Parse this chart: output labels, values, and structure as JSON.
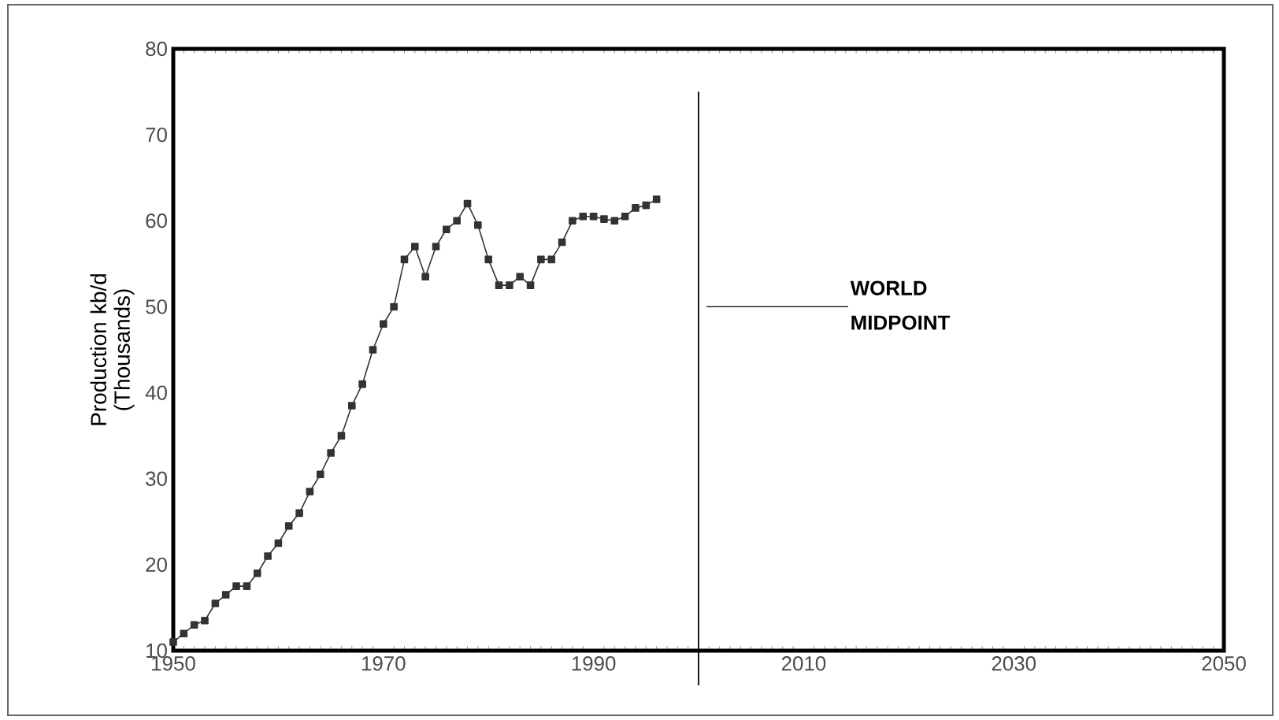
{
  "chart_data": {
    "type": "line",
    "ylabel": "Production kb/d (Thousands)",
    "x": [
      1950,
      1951,
      1952,
      1953,
      1954,
      1955,
      1956,
      1957,
      1958,
      1959,
      1960,
      1961,
      1962,
      1963,
      1964,
      1965,
      1966,
      1967,
      1968,
      1969,
      1970,
      1971,
      1972,
      1973,
      1974,
      1975,
      1976,
      1977,
      1978,
      1979,
      1980,
      1981,
      1982,
      1983,
      1984,
      1985,
      1986,
      1987,
      1988,
      1989,
      1990,
      1991,
      1992,
      1993,
      1994,
      1995,
      1996
    ],
    "values": [
      11,
      12,
      13,
      13.5,
      15.5,
      16.5,
      17.5,
      17.5,
      19,
      21,
      22.5,
      24.5,
      26,
      28.5,
      30.5,
      33,
      35,
      38.5,
      41,
      45,
      48,
      50,
      55.5,
      57,
      53.5,
      57,
      59,
      60,
      62,
      59.5,
      55.5,
      52.5,
      52.5,
      53.5,
      52.5,
      55.5,
      55.5,
      57.5,
      60,
      60.5,
      60.5,
      60.2,
      60,
      60.5,
      61.5,
      61.8,
      62.5
    ],
    "color": "#333333",
    "marker": "square",
    "line_style": "solid",
    "grid": false,
    "xlim": [
      1950,
      2050
    ],
    "xticks": [
      1950,
      1970,
      1990,
      2010,
      2030,
      2050
    ],
    "ylim": [
      10,
      80
    ],
    "yticks": [
      10,
      20,
      30,
      40,
      50,
      60,
      70,
      80
    ],
    "ref_lines": [
      {
        "axis": "x",
        "value": 2000,
        "label": "WORLD MIDPOINT",
        "color": "#000000"
      }
    ]
  }
}
